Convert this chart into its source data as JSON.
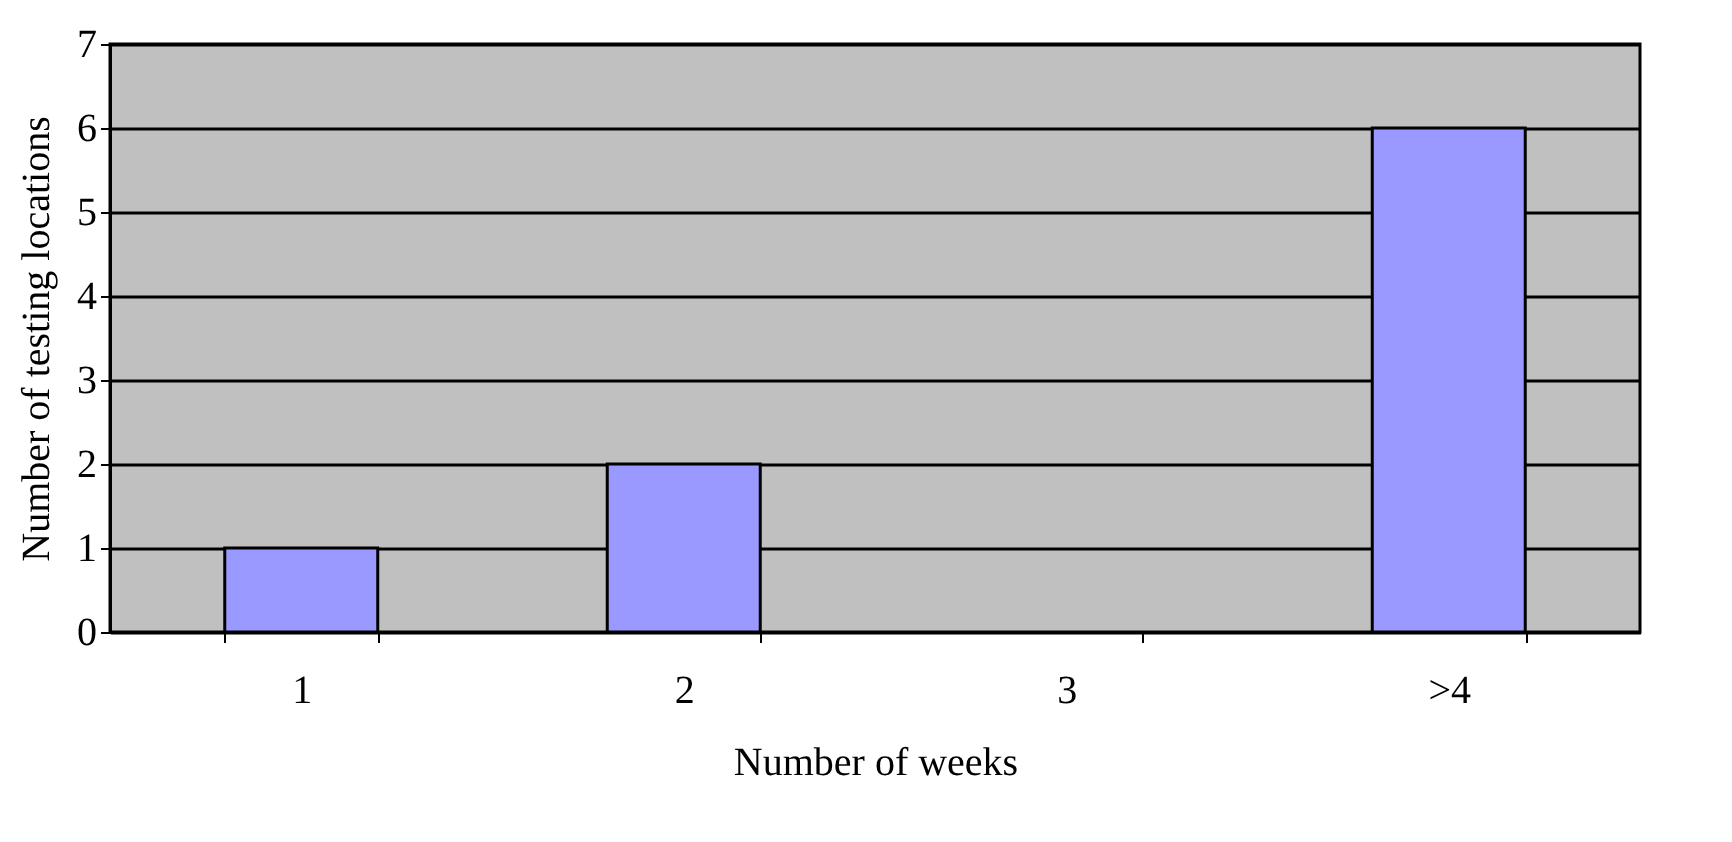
{
  "chart_data": {
    "type": "bar",
    "xlabel": "Number of weeks",
    "ylabel": "Number of testing locations",
    "categories": [
      "1",
      "2",
      "3",
      ">4"
    ],
    "values": [
      1,
      2,
      0,
      6
    ],
    "color": "#9999ff",
    "ylim": [
      0,
      7
    ],
    "yticks": [
      0,
      1,
      2,
      3,
      4,
      5,
      6,
      7
    ],
    "grid": "y"
  }
}
